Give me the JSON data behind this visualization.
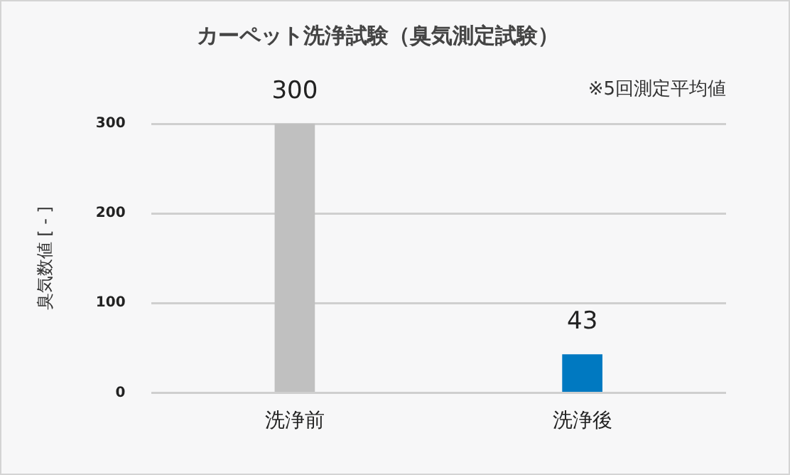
{
  "chart_data": {
    "type": "bar",
    "title": "カーペット洗浄試験（臭気測定試験）",
    "ylabel": "臭気数値 [ - ]",
    "annotations": [
      "※5回測定平均値"
    ],
    "categories": [
      "洗浄前",
      "洗浄後"
    ],
    "values": [
      300,
      43
    ],
    "colors": [
      "#c0c0c0",
      "#0079c1"
    ],
    "ylim": [
      0,
      300
    ],
    "yticks": [
      0,
      100,
      200,
      300
    ],
    "grid": "y",
    "legend": false,
    "data_labels": true
  }
}
